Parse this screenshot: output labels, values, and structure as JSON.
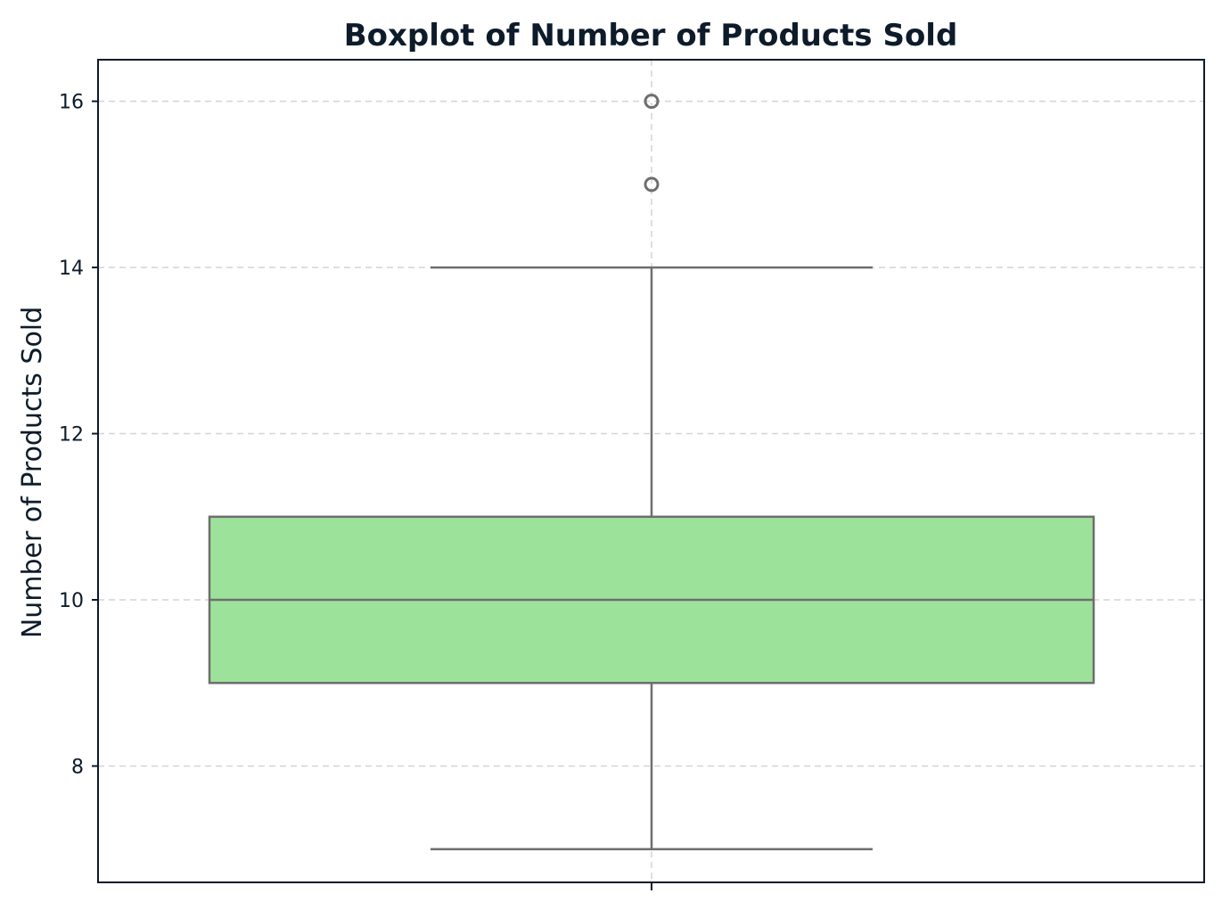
{
  "chart_data": {
    "type": "boxplot",
    "title": "Boxplot of Number of Products Sold",
    "xlabel": "",
    "ylabel": "Number of Products Sold",
    "ylim": [
      6.6,
      16.5
    ],
    "yticks": [
      8,
      10,
      12,
      14,
      16
    ],
    "ytick_labels": [
      "8",
      "10",
      "12",
      "14",
      "16"
    ],
    "grid": true,
    "box": {
      "whisker_low": 7,
      "q1": 9,
      "median": 10,
      "q3": 11,
      "whisker_high": 14,
      "outliers": [
        15,
        16
      ]
    },
    "colors": {
      "box_fill": "#9de29b",
      "line": "#6e6e6e",
      "text": "#0d1b2a",
      "grid": "#d4d4d4"
    }
  }
}
